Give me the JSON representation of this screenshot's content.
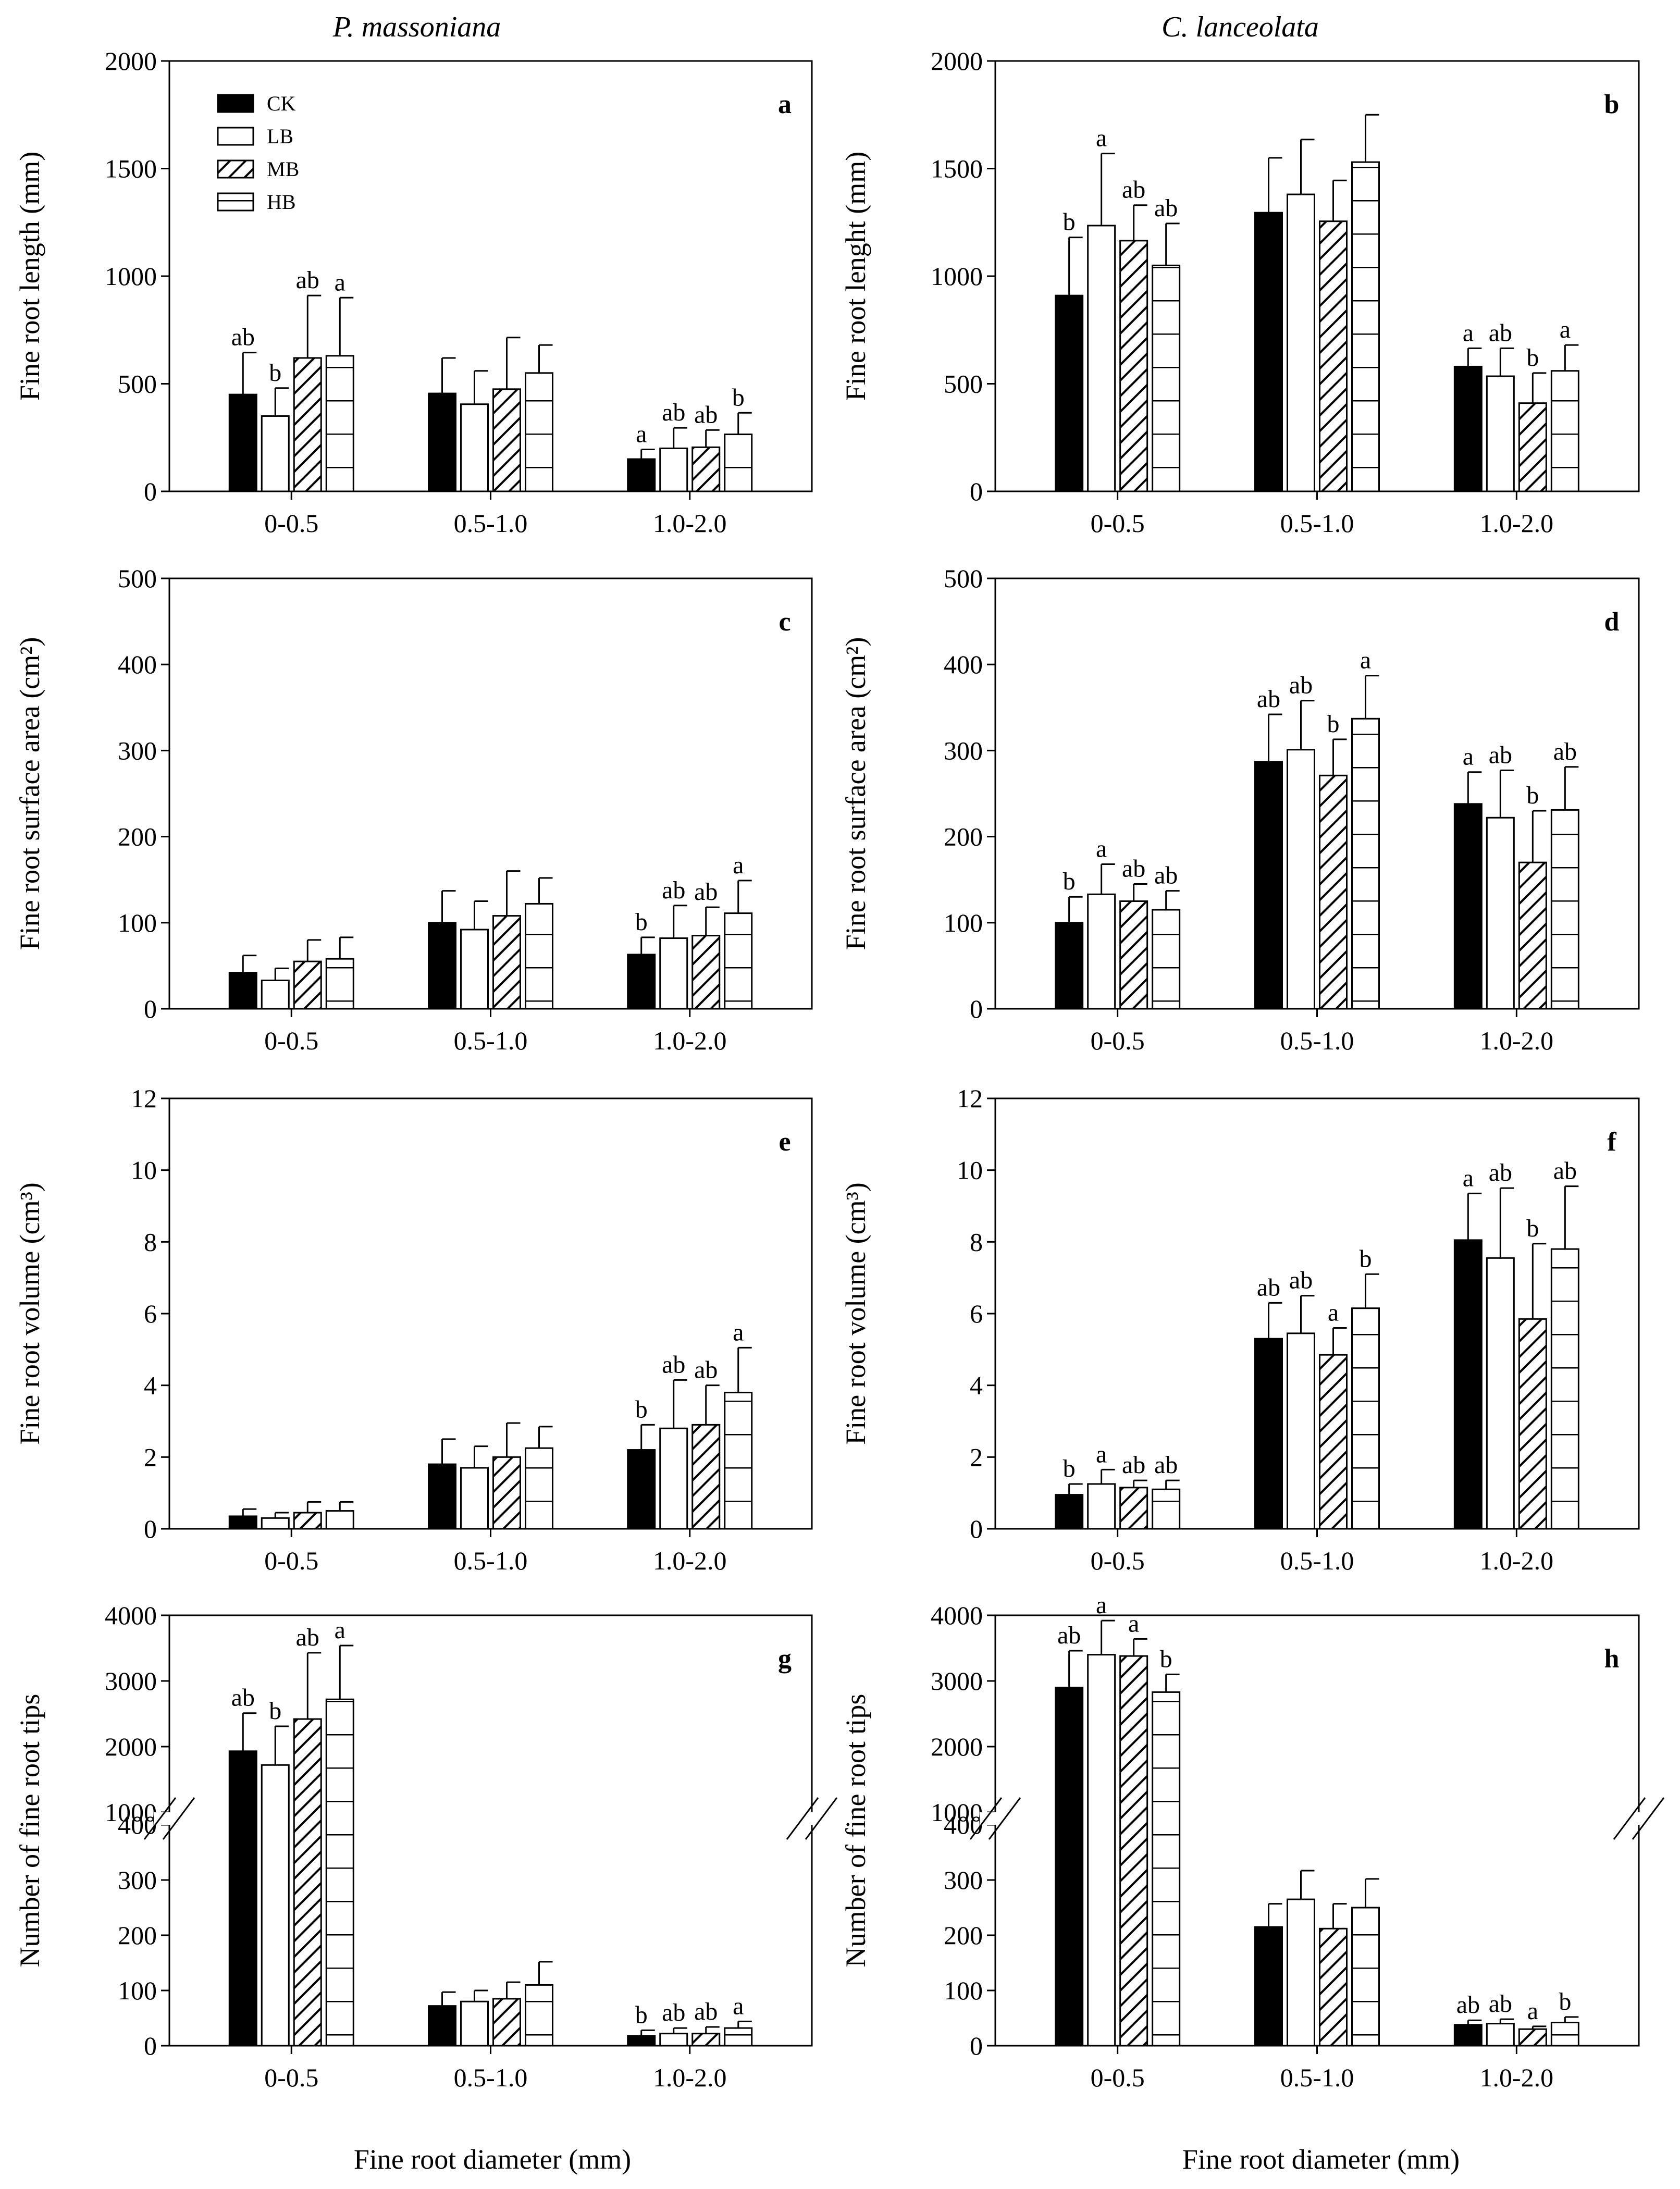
{
  "colors": {
    "axis": "#000000",
    "bar_fill": "#ffffff",
    "solid_fill": "#000000"
  },
  "titles": {
    "left": "P. massoniana",
    "right": "C. lanceolata"
  },
  "xlabels": {
    "left": "Fine root diameter (mm)",
    "right": "Fine root diameter (mm)"
  },
  "legend": [
    {
      "label": "CK",
      "pattern": "solid"
    },
    {
      "label": "LB",
      "pattern": "open"
    },
    {
      "label": "MB",
      "pattern": "diagonal"
    },
    {
      "label": "HB",
      "pattern": "horizontal"
    }
  ],
  "chart_data": [
    {
      "id": "a",
      "type": "bar",
      "letter": "a",
      "ylabel": "Fine root length (mm)",
      "categories": [
        "0-0.5",
        "0.5-1.0",
        "1.0-2.0"
      ],
      "ylim": [
        0,
        2000
      ],
      "yticks": [
        "0",
        "500",
        "1000",
        "1500",
        "2000"
      ],
      "series": [
        {
          "name": "CK",
          "values": [
            450,
            455,
            150
          ],
          "errors": [
            195,
            165,
            45
          ],
          "labels": [
            "ab",
            "",
            "a"
          ]
        },
        {
          "name": "LB",
          "values": [
            350,
            405,
            200
          ],
          "errors": [
            130,
            155,
            95
          ],
          "labels": [
            "b",
            "",
            "ab"
          ]
        },
        {
          "name": "MB",
          "values": [
            620,
            475,
            205
          ],
          "errors": [
            290,
            240,
            80
          ],
          "labels": [
            "ab",
            "",
            "ab"
          ]
        },
        {
          "name": "HB",
          "values": [
            630,
            550,
            265
          ],
          "errors": [
            270,
            130,
            100
          ],
          "labels": [
            "a",
            "",
            "b"
          ]
        }
      ]
    },
    {
      "id": "b",
      "type": "bar",
      "letter": "b",
      "ylabel": "Fine root lenght (mm)",
      "categories": [
        "0-0.5",
        "0.5-1.0",
        "1.0-2.0"
      ],
      "ylim": [
        0,
        2000
      ],
      "yticks": [
        "0",
        "500",
        "1000",
        "1500",
        "2000"
      ],
      "series": [
        {
          "name": "CK",
          "values": [
            910,
            1295,
            580
          ],
          "errors": [
            270,
            255,
            85
          ],
          "labels": [
            "b",
            "",
            "a"
          ]
        },
        {
          "name": "LB",
          "values": [
            1235,
            1380,
            535
          ],
          "errors": [
            335,
            255,
            130
          ],
          "labels": [
            "a",
            "",
            "ab"
          ]
        },
        {
          "name": "MB",
          "values": [
            1165,
            1255,
            410
          ],
          "errors": [
            165,
            190,
            140
          ],
          "labels": [
            "ab",
            "",
            "b"
          ]
        },
        {
          "name": "HB",
          "values": [
            1050,
            1530,
            560
          ],
          "errors": [
            195,
            220,
            120
          ],
          "labels": [
            "ab",
            "",
            "a"
          ]
        }
      ]
    },
    {
      "id": "c",
      "type": "bar",
      "letter": "c",
      "ylabel": "Fine root surface area (cm²)",
      "categories": [
        "0-0.5",
        "0.5-1.0",
        "1.0-2.0"
      ],
      "ylim": [
        0,
        500
      ],
      "yticks": [
        "0",
        "100",
        "200",
        "300",
        "400",
        "500"
      ],
      "series": [
        {
          "name": "CK",
          "values": [
            42,
            100,
            63
          ],
          "errors": [
            20,
            37,
            20
          ],
          "labels": [
            "",
            "",
            "b"
          ]
        },
        {
          "name": "LB",
          "values": [
            33,
            92,
            82
          ],
          "errors": [
            14,
            33,
            38
          ],
          "labels": [
            "",
            "",
            "ab"
          ]
        },
        {
          "name": "MB",
          "values": [
            55,
            108,
            85
          ],
          "errors": [
            25,
            52,
            33
          ],
          "labels": [
            "",
            "",
            "ab"
          ]
        },
        {
          "name": "HB",
          "values": [
            58,
            122,
            111
          ],
          "errors": [
            25,
            30,
            38
          ],
          "labels": [
            "",
            "",
            "a"
          ]
        }
      ]
    },
    {
      "id": "d",
      "type": "bar",
      "letter": "d",
      "ylabel": "Fine root surface area (cm²)",
      "categories": [
        "0-0.5",
        "0.5-1.0",
        "1.0-2.0"
      ],
      "ylim": [
        0,
        500
      ],
      "yticks": [
        "0",
        "100",
        "200",
        "300",
        "400",
        "500"
      ],
      "series": [
        {
          "name": "CK",
          "values": [
            100,
            287,
            238
          ],
          "errors": [
            30,
            55,
            37
          ],
          "labels": [
            "b",
            "ab",
            "a"
          ]
        },
        {
          "name": "LB",
          "values": [
            133,
            301,
            222
          ],
          "errors": [
            35,
            57,
            55
          ],
          "labels": [
            "a",
            "ab",
            "ab"
          ]
        },
        {
          "name": "MB",
          "values": [
            125,
            271,
            170
          ],
          "errors": [
            20,
            42,
            60
          ],
          "labels": [
            "ab",
            "b",
            "b"
          ]
        },
        {
          "name": "HB",
          "values": [
            115,
            337,
            231
          ],
          "errors": [
            22,
            50,
            50
          ],
          "labels": [
            "ab",
            "a",
            "ab"
          ]
        }
      ]
    },
    {
      "id": "e",
      "type": "bar",
      "letter": "e",
      "ylabel": "Fine root volume (cm³)",
      "categories": [
        "0-0.5",
        "0.5-1.0",
        "1.0-2.0"
      ],
      "ylim": [
        0,
        12
      ],
      "yticks": [
        "0",
        "2",
        "4",
        "6",
        "8",
        "10",
        "12"
      ],
      "series": [
        {
          "name": "CK",
          "values": [
            0.35,
            1.8,
            2.2
          ],
          "errors": [
            0.2,
            0.7,
            0.7
          ],
          "labels": [
            "",
            "",
            "b"
          ]
        },
        {
          "name": "LB",
          "values": [
            0.3,
            1.7,
            2.8
          ],
          "errors": [
            0.15,
            0.6,
            1.35
          ],
          "labels": [
            "",
            "",
            "ab"
          ]
        },
        {
          "name": "MB",
          "values": [
            0.45,
            2.0,
            2.9
          ],
          "errors": [
            0.3,
            0.95,
            1.1
          ],
          "labels": [
            "",
            "",
            "ab"
          ]
        },
        {
          "name": "HB",
          "values": [
            0.5,
            2.25,
            3.8
          ],
          "errors": [
            0.25,
            0.6,
            1.25
          ],
          "labels": [
            "",
            "",
            "a"
          ]
        }
      ]
    },
    {
      "id": "f",
      "type": "bar",
      "letter": "f",
      "ylabel": "Fine root volume (cm³)",
      "categories": [
        "0-0.5",
        "0.5-1.0",
        "1.0-2.0"
      ],
      "ylim": [
        0,
        12
      ],
      "yticks": [
        "0",
        "2",
        "4",
        "6",
        "8",
        "10",
        "12"
      ],
      "series": [
        {
          "name": "CK",
          "values": [
            0.95,
            5.3,
            8.05
          ],
          "errors": [
            0.3,
            1.0,
            1.3
          ],
          "labels": [
            "b",
            "ab",
            "a"
          ]
        },
        {
          "name": "LB",
          "values": [
            1.25,
            5.45,
            7.55
          ],
          "errors": [
            0.4,
            1.05,
            1.95
          ],
          "labels": [
            "a",
            "ab",
            "ab"
          ]
        },
        {
          "name": "MB",
          "values": [
            1.15,
            4.85,
            5.85
          ],
          "errors": [
            0.2,
            0.75,
            2.1
          ],
          "labels": [
            "ab",
            "a",
            "b"
          ]
        },
        {
          "name": "HB",
          "values": [
            1.1,
            6.15,
            7.8
          ],
          "errors": [
            0.25,
            0.95,
            1.75
          ],
          "labels": [
            "ab",
            "b",
            "ab"
          ]
        }
      ]
    },
    {
      "id": "g",
      "type": "bar",
      "letter": "g",
      "ylabel": "Number of fine root tips",
      "categories": [
        "0-0.5",
        "0.5-1.0",
        "1.0-2.0"
      ],
      "broken_axis": true,
      "ylim_lower": [
        0,
        400
      ],
      "yticks_lower": [
        "0",
        "100",
        "200",
        "300",
        "400"
      ],
      "ylim_upper": [
        1000,
        4000
      ],
      "yticks_upper": [
        "1000",
        "2000",
        "3000",
        "4000"
      ],
      "series": [
        {
          "name": "CK",
          "values": [
            1930,
            72,
            18
          ],
          "errors": [
            580,
            25,
            10
          ],
          "labels": [
            "ab",
            "",
            "b"
          ]
        },
        {
          "name": "LB",
          "values": [
            1720,
            80,
            22
          ],
          "errors": [
            590,
            20,
            10
          ],
          "labels": [
            "b",
            "",
            "ab"
          ]
        },
        {
          "name": "MB",
          "values": [
            2420,
            85,
            22
          ],
          "errors": [
            1010,
            30,
            12
          ],
          "labels": [
            "ab",
            "",
            "ab"
          ]
        },
        {
          "name": "HB",
          "values": [
            2720,
            110,
            32
          ],
          "errors": [
            820,
            42,
            12
          ],
          "labels": [
            "a",
            "",
            "a"
          ]
        }
      ]
    },
    {
      "id": "h",
      "type": "bar",
      "letter": "h",
      "ylabel": "Number of fine root tips",
      "categories": [
        "0-0.5",
        "0.5-1.0",
        "1.0-2.0"
      ],
      "broken_axis": true,
      "ylim_lower": [
        0,
        400
      ],
      "yticks_lower": [
        "0",
        "100",
        "200",
        "300",
        "400"
      ],
      "ylim_upper": [
        1000,
        4000
      ],
      "yticks_upper": [
        "1000",
        "2000",
        "3000",
        "4000"
      ],
      "series": [
        {
          "name": "CK",
          "values": [
            2900,
            215,
            38
          ],
          "errors": [
            560,
            42,
            8
          ],
          "labels": [
            "ab",
            "",
            "ab"
          ]
        },
        {
          "name": "LB",
          "values": [
            3400,
            265,
            40
          ],
          "errors": [
            520,
            52,
            8
          ],
          "labels": [
            "a",
            "",
            "ab"
          ]
        },
        {
          "name": "MB",
          "values": [
            3380,
            212,
            30
          ],
          "errors": [
            260,
            45,
            5
          ],
          "labels": [
            "a",
            "",
            "a"
          ]
        },
        {
          "name": "HB",
          "values": [
            2830,
            250,
            42
          ],
          "errors": [
            270,
            52,
            10
          ],
          "labels": [
            "b",
            "",
            "b"
          ]
        }
      ]
    }
  ]
}
